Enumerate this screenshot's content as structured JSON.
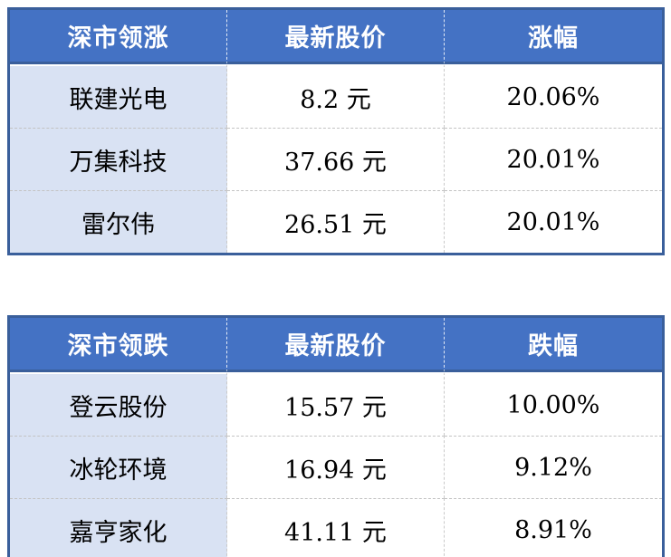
{
  "colors": {
    "header_bg": "#4472C4",
    "name_column_bg": "#D9E2F3",
    "outer_border": "#3A5F9B",
    "header_text": "#FFFFFF",
    "body_text": "#000000"
  },
  "chart_data": [
    {
      "type": "table",
      "title": "深市领涨",
      "headers": [
        "深市领涨",
        "最新股价",
        "涨幅"
      ],
      "rows": [
        [
          "联建光电",
          "8.2 元",
          "20.06%"
        ],
        [
          "万集科技",
          "37.66 元",
          "20.01%"
        ],
        [
          "雷尔伟",
          "26.51 元",
          "20.01%"
        ]
      ]
    },
    {
      "type": "table",
      "title": "深市领跌",
      "headers": [
        "深市领跌",
        "最新股价",
        "跌幅"
      ],
      "rows": [
        [
          "登云股份",
          "15.57 元",
          "10.00%"
        ],
        [
          "冰轮环境",
          "16.94 元",
          "9.12%"
        ],
        [
          "嘉亨家化",
          "41.11 元",
          "8.91%"
        ]
      ]
    }
  ]
}
